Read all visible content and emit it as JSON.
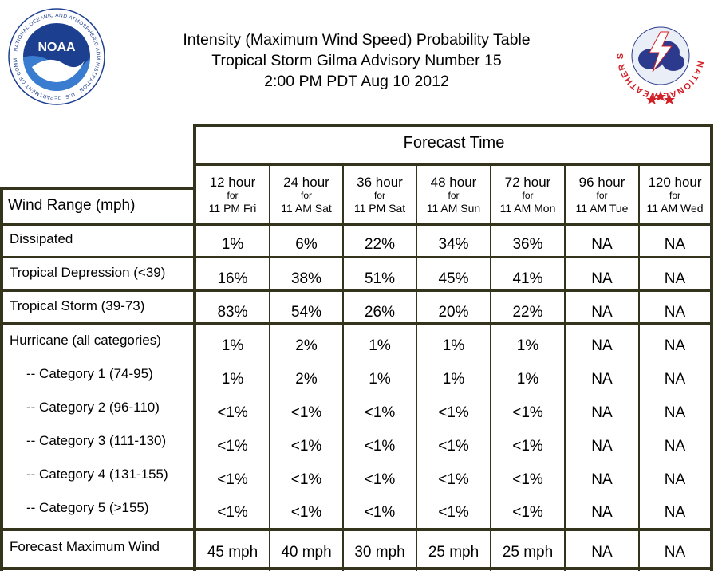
{
  "title": {
    "line1": "Intensity (Maximum Wind Speed) Probability Table",
    "line2": "Tropical Storm Gilma Advisory Number 15",
    "line3": "2:00 PM PDT Aug 10 2012"
  },
  "logos": {
    "noaa_text": "NOAA",
    "noaa_ring": "NATIONAL OCEANIC AND ATMOSPHERIC ADMINISTRATION · U.S. DEPARTMENT OF COMMERCE",
    "nws_ring": "NATIONAL WEATHER SERVICE"
  },
  "colors": {
    "grid": "#34331b",
    "noaa_blue": "#1d3f8f",
    "nws_red": "#d32027",
    "nws_cloud": "#2b3a8c"
  },
  "header": {
    "forecast_time": "Forecast Time",
    "wind_range": "Wind Range (mph)",
    "for_word": "for",
    "columns": [
      {
        "hours": "12 hour",
        "time": "11 PM Fri"
      },
      {
        "hours": "24 hour",
        "time": "11 AM Sat"
      },
      {
        "hours": "36 hour",
        "time": "11 PM Sat"
      },
      {
        "hours": "48 hour",
        "time": "11 AM Sun"
      },
      {
        "hours": "72 hour",
        "time": "11 AM Mon"
      },
      {
        "hours": "96 hour",
        "time": "11 AM Tue"
      },
      {
        "hours": "120 hour",
        "time": "11 AM Wed"
      }
    ]
  },
  "rows": [
    {
      "label": "Dissipated",
      "values": [
        "1%",
        "6%",
        "22%",
        "34%",
        "36%",
        "NA",
        "NA"
      ]
    },
    {
      "label": "Tropical Depression (<39)",
      "values": [
        "16%",
        "38%",
        "51%",
        "45%",
        "41%",
        "NA",
        "NA"
      ]
    },
    {
      "label": "Tropical Storm (39-73)",
      "values": [
        "83%",
        "54%",
        "26%",
        "20%",
        "22%",
        "NA",
        "NA"
      ]
    },
    {
      "label": "Hurricane (all categories)",
      "values": [
        "1%",
        "2%",
        "1%",
        "1%",
        "1%",
        "NA",
        "NA"
      ]
    },
    {
      "label": "-- Category 1 (74-95)",
      "values": [
        "1%",
        "2%",
        "1%",
        "1%",
        "1%",
        "NA",
        "NA"
      ]
    },
    {
      "label": "-- Category 2 (96-110)",
      "values": [
        "<1%",
        "<1%",
        "<1%",
        "<1%",
        "<1%",
        "NA",
        "NA"
      ]
    },
    {
      "label": "-- Category 3 (111-130)",
      "values": [
        "<1%",
        "<1%",
        "<1%",
        "<1%",
        "<1%",
        "NA",
        "NA"
      ]
    },
    {
      "label": "-- Category 4 (131-155)",
      "values": [
        "<1%",
        "<1%",
        "<1%",
        "<1%",
        "<1%",
        "NA",
        "NA"
      ]
    },
    {
      "label": "-- Category 5 (>155)",
      "values": [
        "<1%",
        "<1%",
        "<1%",
        "<1%",
        "<1%",
        "NA",
        "NA"
      ]
    },
    {
      "label": "Forecast Maximum Wind",
      "values": [
        "45 mph",
        "40 mph",
        "30 mph",
        "25 mph",
        "25 mph",
        "NA",
        "NA"
      ]
    }
  ]
}
